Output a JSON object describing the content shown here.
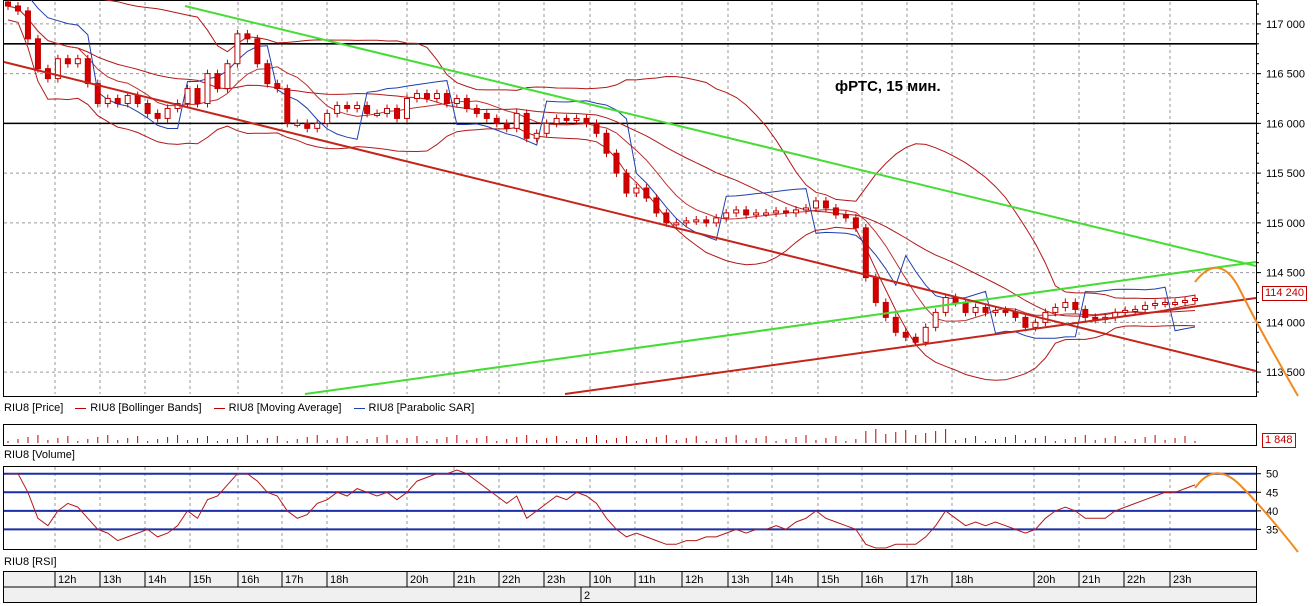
{
  "chart_data": {
    "type": "candlestick",
    "title": "фРТС, 15 мин.",
    "price_axis": {
      "ylim": [
        113300,
        117200
      ],
      "ticks": [
        117000,
        116500,
        116000,
        115500,
        115000,
        114500,
        114000,
        113500
      ],
      "tick_labels": [
        "117 000",
        "116 500",
        "116 000",
        "115 500",
        "115 000",
        "114 500",
        "114 000",
        "113 500"
      ]
    },
    "last_price_label": "114 240",
    "legend": [
      "RIU8 [Price]",
      "RIU8 [Bollinger Bands]",
      "RIU8 [Moving Average]",
      "RIU8 [Parabolic SAR]"
    ],
    "volume_panel": {
      "label": "RIU8 [Volume]",
      "last_value_label": "1 848"
    },
    "rsi_panel": {
      "label": "RIU8 [RSI]",
      "ticks": [
        50,
        45,
        40,
        35
      ],
      "tick_labels": [
        "50",
        "45",
        "40",
        "35"
      ],
      "ylim": [
        30,
        51
      ]
    },
    "time_labels": [
      "12h",
      "13h",
      "14h",
      "15h",
      "16h",
      "17h",
      "18h",
      "20h",
      "21h",
      "22h",
      "23h",
      "10h",
      "11h",
      "12h",
      "13h",
      "14h",
      "15h",
      "16h",
      "17h",
      "18h",
      "20h",
      "21h",
      "22h",
      "23h"
    ],
    "date_label": "2",
    "horizontal_levels": [
      116800,
      116000
    ],
    "closes": [
      117180,
      117130,
      116850,
      116550,
      116450,
      116650,
      116600,
      116650,
      116400,
      116200,
      116250,
      116200,
      116280,
      116200,
      116100,
      116050,
      116150,
      116200,
      116350,
      116200,
      116500,
      116350,
      116600,
      116900,
      116850,
      116600,
      116400,
      116350,
      116000,
      116000,
      115950,
      116000,
      116100,
      116180,
      116150,
      116180,
      116100,
      116100,
      116150,
      116050,
      116250,
      116300,
      116250,
      116300,
      116200,
      116250,
      116150,
      116100,
      116050,
      116000,
      115950,
      116100,
      115850,
      115900,
      116000,
      116050,
      116030,
      116050,
      116000,
      115900,
      115700,
      115500,
      115300,
      115350,
      115250,
      115100,
      115000,
      115000,
      115020,
      115030,
      115000,
      115050,
      115100,
      115130,
      115080,
      115100,
      115100,
      115120,
      115100,
      115130,
      115150,
      115220,
      115150,
      115080,
      115050,
      114950,
      114450,
      114200,
      114050,
      113900,
      113850,
      113800,
      113950,
      114100,
      114250,
      114200,
      114100,
      114150,
      114100,
      114120,
      114100,
      114050,
      113950,
      114000,
      114100,
      114150,
      114200,
      114130,
      114050,
      114030,
      114050,
      114100,
      114120,
      114130,
      114170,
      114190,
      114200,
      114200,
      114220,
      114240
    ],
    "rsi": [
      50,
      50,
      45,
      38,
      36,
      40,
      42,
      41,
      38,
      35,
      34,
      32,
      33,
      34,
      35,
      33,
      34,
      36,
      40,
      38,
      43,
      44,
      47,
      50,
      50,
      48,
      45,
      44,
      40,
      38,
      39,
      42,
      43,
      45,
      44,
      46,
      45,
      44,
      45,
      43,
      45,
      48,
      49,
      50,
      50,
      51,
      50,
      48,
      46,
      44,
      42,
      44,
      38,
      40,
      42,
      44,
      43,
      45,
      44,
      42,
      38,
      35,
      33,
      34,
      33,
      32,
      31,
      31,
      32,
      32,
      33,
      33,
      34,
      35,
      34,
      35,
      35,
      36,
      35,
      37,
      38,
      40,
      38,
      37,
      36,
      35,
      31,
      30,
      30,
      31,
      31,
      31,
      33,
      36,
      40,
      38,
      36,
      37,
      36,
      37,
      36,
      35,
      34,
      35,
      38,
      40,
      41,
      40,
      38,
      38,
      38,
      40,
      41,
      42,
      43,
      44,
      45,
      45,
      46,
      47
    ]
  }
}
